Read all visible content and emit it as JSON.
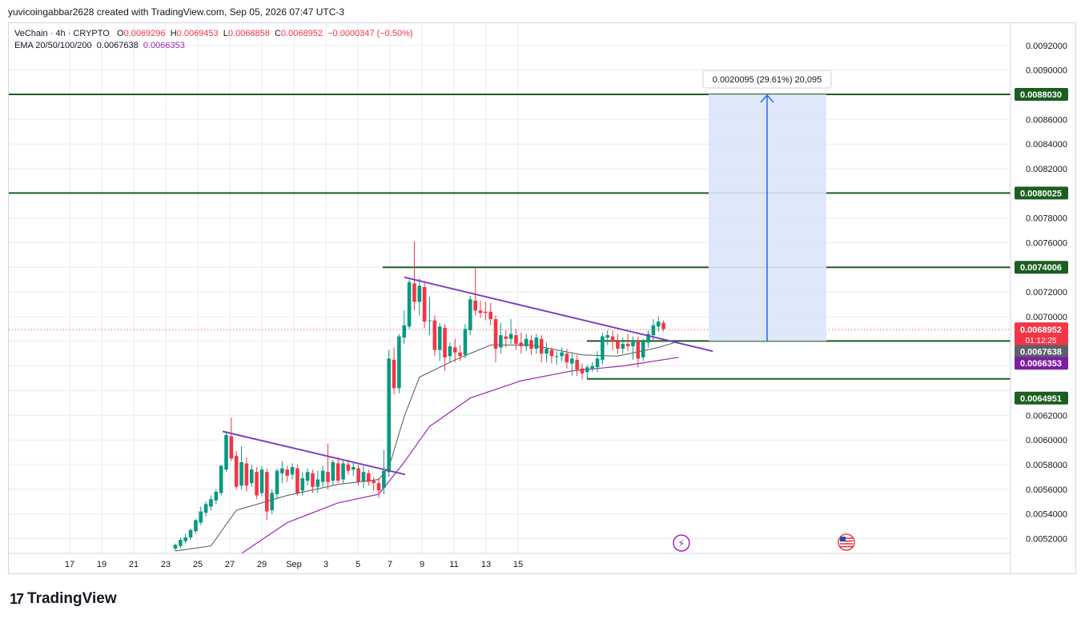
{
  "header": {
    "credit": "yuvicoingabbar2628 created with TradingView.com, Sep 05, 2026 07:47 UTC-3"
  },
  "legend": {
    "symbol": "VeChain · 4h · CRYPTO",
    "o_label": "O",
    "o": "0.0069296",
    "h_label": "H",
    "h": "0.0069453",
    "l_label": "L",
    "l": "0.0068858",
    "c_label": "C",
    "c": "0.0068952",
    "change": "−0.0000347 (−0.50%)",
    "ema_label": "EMA 20/50/100/200",
    "ema1": "0.0067638",
    "ema2": "0.0066353"
  },
  "footer": {
    "brand": "TradingView",
    "logo": "17"
  },
  "colors": {
    "up": "#089981",
    "down": "#f23645",
    "level": "#1b5e20",
    "trend": "#7e3fbf",
    "ema_fast": "#555555",
    "ema_slow": "#9c27b0",
    "measure_fill": "#dbe4fb",
    "measure_line": "#2962ff",
    "price_badge": "#f23645"
  },
  "chart_data": {
    "type": "candlestick",
    "symbol": "VeChain",
    "timeframe": "4h",
    "x_ticks": [
      "17",
      "19",
      "21",
      "23",
      "25",
      "27",
      "29",
      "Sep",
      "3",
      "5",
      "7",
      "9",
      "11",
      "13",
      "15"
    ],
    "y_ticks": [
      "0.0052000",
      "0.0054000",
      "0.0056000",
      "0.0058000",
      "0.0060000",
      "0.0062000",
      "0.0070000",
      "0.0072000",
      "0.0076000",
      "0.0078000",
      "0.0082000",
      "0.0084000",
      "0.0086000",
      "0.0090000",
      "0.0092000"
    ],
    "ylim": [
      0.00508,
      0.00938
    ],
    "horizontal_levels": [
      {
        "label": "0.0088030",
        "value": 0.008803
      },
      {
        "label": "0.0080025",
        "value": 0.0080025
      },
      {
        "label": "0.0074006",
        "value": 0.0074006
      },
      {
        "label": "0.0068027",
        "value": 0.0068027
      },
      {
        "label": "0.0064951",
        "value": 0.0064951
      }
    ],
    "current_price": {
      "label": "0.0068952",
      "value": 0.0068952,
      "countdown": "01:12:25"
    },
    "ema_badges": [
      {
        "label": "0.0067638",
        "value": 0.0067638
      },
      {
        "label": "0.0066353",
        "value": 0.0066353
      }
    ],
    "measure": {
      "label": "0.0020095 (29.61%) 20,095",
      "from": 0.0068027,
      "to": 0.008803
    },
    "candles": [
      [
        0.00512,
        0.00515,
        0.0051,
        0.00516
      ],
      [
        0.00514,
        0.00519,
        0.00512,
        0.00521
      ],
      [
        0.00518,
        0.00521,
        0.00516,
        0.00524
      ],
      [
        0.00521,
        0.00527,
        0.00519,
        0.00528
      ],
      [
        0.00526,
        0.00535,
        0.00524,
        0.00536
      ],
      [
        0.00533,
        0.00542,
        0.00531,
        0.00546
      ],
      [
        0.00541,
        0.00548,
        0.00538,
        0.0055
      ],
      [
        0.00546,
        0.00552,
        0.00543,
        0.00555
      ],
      [
        0.00551,
        0.00558,
        0.00548,
        0.0056
      ],
      [
        0.00557,
        0.00579,
        0.00555,
        0.0058
      ],
      [
        0.00576,
        0.00604,
        0.00574,
        0.00606
      ],
      [
        0.00603,
        0.00585,
        0.00583,
        0.00618
      ],
      [
        0.00587,
        0.00562,
        0.0056,
        0.00591
      ],
      [
        0.00563,
        0.00582,
        0.0056,
        0.00595
      ],
      [
        0.00581,
        0.00563,
        0.00558,
        0.00586
      ],
      [
        0.00565,
        0.00576,
        0.00562,
        0.0058
      ],
      [
        0.00574,
        0.00555,
        0.00552,
        0.00578
      ],
      [
        0.00557,
        0.00576,
        0.00554,
        0.00579
      ],
      [
        0.00574,
        0.00542,
        0.00535,
        0.00577
      ],
      [
        0.00543,
        0.00557,
        0.0054,
        0.0056
      ],
      [
        0.00556,
        0.00575,
        0.00552,
        0.00577
      ],
      [
        0.00573,
        0.00577,
        0.00565,
        0.00583
      ],
      [
        0.00576,
        0.00571,
        0.00566,
        0.00579
      ],
      [
        0.00572,
        0.00578,
        0.00568,
        0.00581
      ],
      [
        0.00577,
        0.00557,
        0.00555,
        0.0058
      ],
      [
        0.00559,
        0.00569,
        0.00555,
        0.00574
      ],
      [
        0.00567,
        0.00574,
        0.00563,
        0.00577
      ],
      [
        0.00573,
        0.00562,
        0.00557,
        0.00576
      ],
      [
        0.00562,
        0.00568,
        0.00557,
        0.00575
      ],
      [
        0.00566,
        0.00575,
        0.00562,
        0.00579
      ],
      [
        0.00574,
        0.00566,
        0.0056,
        0.00597
      ],
      [
        0.00567,
        0.00582,
        0.00563,
        0.00584
      ],
      [
        0.00581,
        0.00567,
        0.00565,
        0.00586
      ],
      [
        0.00568,
        0.00581,
        0.00565,
        0.00584
      ],
      [
        0.0058,
        0.00575,
        0.00572,
        0.00584
      ],
      [
        0.00576,
        0.00578,
        0.00571,
        0.00582
      ],
      [
        0.00577,
        0.00566,
        0.00563,
        0.0058
      ],
      [
        0.00566,
        0.00574,
        0.00561,
        0.00579
      ],
      [
        0.00573,
        0.00566,
        0.00563,
        0.00576
      ],
      [
        0.00567,
        0.00565,
        0.00559,
        0.0057
      ],
      [
        0.00565,
        0.00559,
        0.00553,
        0.00569
      ],
      [
        0.00561,
        0.00575,
        0.00556,
        0.00592
      ],
      [
        0.00574,
        0.00666,
        0.0057,
        0.00673
      ],
      [
        0.00665,
        0.00642,
        0.00637,
        0.00675
      ],
      [
        0.00642,
        0.00684,
        0.00638,
        0.00686
      ],
      [
        0.00683,
        0.00693,
        0.00678,
        0.00705
      ],
      [
        0.00692,
        0.00728,
        0.0069,
        0.0073
      ],
      [
        0.00727,
        0.00712,
        0.00705,
        0.00761
      ],
      [
        0.00712,
        0.00725,
        0.00701,
        0.00731
      ],
      [
        0.00724,
        0.00696,
        0.00691,
        0.00729
      ],
      [
        0.00697,
        0.00697,
        0.00685,
        0.00716
      ],
      [
        0.00697,
        0.00673,
        0.00668,
        0.00701
      ],
      [
        0.00673,
        0.00692,
        0.00664,
        0.00695
      ],
      [
        0.00691,
        0.00667,
        0.00656,
        0.00694
      ],
      [
        0.00668,
        0.00676,
        0.00663,
        0.00679
      ],
      [
        0.00675,
        0.00671,
        0.00663,
        0.00682
      ],
      [
        0.00671,
        0.00668,
        0.00664,
        0.00677
      ],
      [
        0.00669,
        0.0069,
        0.00666,
        0.00694
      ],
      [
        0.00689,
        0.00714,
        0.00685,
        0.00717
      ],
      [
        0.00713,
        0.00705,
        0.00701,
        0.0074
      ],
      [
        0.00705,
        0.00703,
        0.00699,
        0.00713
      ],
      [
        0.00704,
        0.00703,
        0.00697,
        0.00712
      ],
      [
        0.00704,
        0.00698,
        0.00693,
        0.00711
      ],
      [
        0.00698,
        0.00674,
        0.00663,
        0.00701
      ],
      [
        0.00675,
        0.00685,
        0.0067,
        0.00695
      ],
      [
        0.00684,
        0.00682,
        0.00675,
        0.00689
      ],
      [
        0.00682,
        0.00686,
        0.00678,
        0.00698
      ],
      [
        0.00685,
        0.00678,
        0.00673,
        0.0069
      ],
      [
        0.00679,
        0.00676,
        0.0067,
        0.00687
      ],
      [
        0.00676,
        0.00682,
        0.00672,
        0.00686
      ],
      [
        0.00681,
        0.00674,
        0.00669,
        0.00685
      ],
      [
        0.00674,
        0.00683,
        0.0067,
        0.00686
      ],
      [
        0.00682,
        0.0067,
        0.00663,
        0.00685
      ],
      [
        0.0067,
        0.00674,
        0.00663,
        0.00679
      ],
      [
        0.00673,
        0.00668,
        0.00662,
        0.00675
      ],
      [
        0.00668,
        0.00668,
        0.00661,
        0.00672
      ],
      [
        0.00668,
        0.00671,
        0.00664,
        0.00675
      ],
      [
        0.0067,
        0.00663,
        0.00658,
        0.00674
      ],
      [
        0.00662,
        0.00666,
        0.00652,
        0.0067
      ],
      [
        0.00665,
        0.00657,
        0.00652,
        0.00669
      ],
      [
        0.00658,
        0.00654,
        0.00649,
        0.00662
      ],
      [
        0.00655,
        0.00659,
        0.0065,
        0.00661
      ],
      [
        0.00658,
        0.0066,
        0.00655,
        0.00663
      ],
      [
        0.00659,
        0.00666,
        0.00655,
        0.00672
      ],
      [
        0.00665,
        0.00684,
        0.00661,
        0.00687
      ],
      [
        0.00683,
        0.00685,
        0.00677,
        0.00689
      ],
      [
        0.00684,
        0.0068,
        0.00673,
        0.00689
      ],
      [
        0.0068,
        0.00674,
        0.0067,
        0.00686
      ],
      [
        0.00674,
        0.00678,
        0.0067,
        0.00683
      ],
      [
        0.00678,
        0.00676,
        0.00672,
        0.00686
      ],
      [
        0.00676,
        0.00681,
        0.00665,
        0.00684
      ],
      [
        0.00681,
        0.00666,
        0.00659,
        0.00684
      ],
      [
        0.00667,
        0.0068,
        0.00664,
        0.00682
      ],
      [
        0.00679,
        0.00686,
        0.00675,
        0.00689
      ],
      [
        0.00685,
        0.00693,
        0.00681,
        0.00698
      ],
      [
        0.00692,
        0.00696,
        0.00688,
        0.007
      ],
      [
        0.00695,
        0.0069,
        0.00688,
        0.00697
      ]
    ],
    "ema_fast": [
      [
        0,
        0.0051
      ],
      [
        7,
        0.00514
      ],
      [
        12,
        0.00543
      ],
      [
        22,
        0.00555
      ],
      [
        32,
        0.00564
      ],
      [
        40,
        0.00568
      ],
      [
        42,
        0.00578
      ],
      [
        45,
        0.00619
      ],
      [
        48,
        0.00651
      ],
      [
        55,
        0.00665
      ],
      [
        62,
        0.00677
      ],
      [
        70,
        0.00677
      ],
      [
        80,
        0.00669
      ],
      [
        87,
        0.00668
      ],
      [
        95,
        0.00675
      ],
      [
        99,
        0.0068
      ]
    ],
    "ema_slow": [
      [
        13,
        0.00508
      ],
      [
        22,
        0.00533
      ],
      [
        32,
        0.00549
      ],
      [
        40,
        0.00556
      ],
      [
        45,
        0.00582
      ],
      [
        50,
        0.00611
      ],
      [
        58,
        0.00634
      ],
      [
        68,
        0.00648
      ],
      [
        78,
        0.00656
      ],
      [
        88,
        0.0066
      ],
      [
        99,
        0.00667
      ]
    ]
  }
}
